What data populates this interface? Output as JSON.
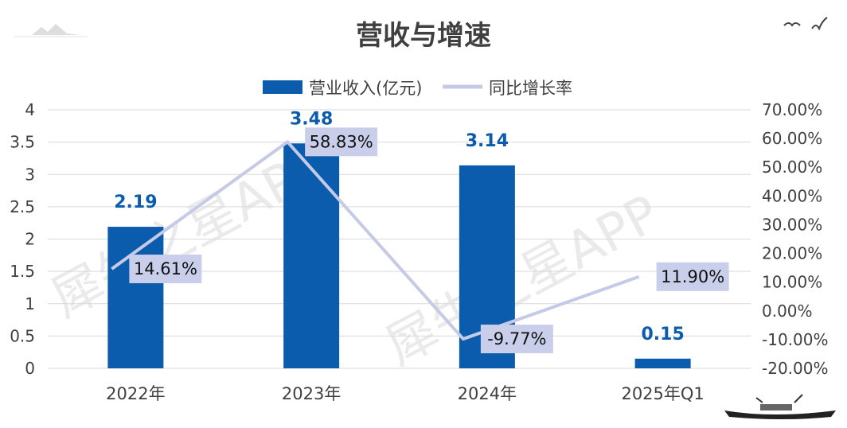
{
  "chart_data": {
    "type": "bar",
    "title": "营收与增速",
    "categories": [
      "2022年",
      "2023年",
      "2024年",
      "2025年Q1"
    ],
    "series": [
      {
        "name": "营业收入(亿元)",
        "type": "bar",
        "axis": "left",
        "values": [
          2.19,
          3.48,
          3.14,
          0.15
        ],
        "labels": [
          "2.19",
          "3.48",
          "3.14",
          "0.15"
        ]
      },
      {
        "name": "同比增长率",
        "type": "line",
        "axis": "right",
        "values": [
          14.61,
          58.83,
          -9.77,
          11.9
        ],
        "labels": [
          "14.61%",
          "58.83%",
          "-9.77%",
          "11.90%"
        ]
      }
    ],
    "left_axis": {
      "ylim": [
        0,
        4
      ],
      "ticks": [
        "0",
        "0.5",
        "1",
        "1.5",
        "2",
        "2.5",
        "3",
        "3.5",
        "4"
      ]
    },
    "right_axis": {
      "ylim": [
        -20,
        70
      ],
      "ticks": [
        "-20.00%",
        "-10.00%",
        "0.00%",
        "10.00%",
        "20.00%",
        "30.00%",
        "40.00%",
        "50.00%",
        "60.00%",
        "70.00%"
      ]
    },
    "grid": true,
    "legend_position": "top-center"
  },
  "watermark": "犀牛之星APP",
  "colors": {
    "bar": "#0b5cad",
    "line": "#c5cbe6",
    "label_box": "#c9cfea",
    "bar_label": "#0b5cad",
    "grid": "#d9d9d9",
    "title": "#404040"
  }
}
